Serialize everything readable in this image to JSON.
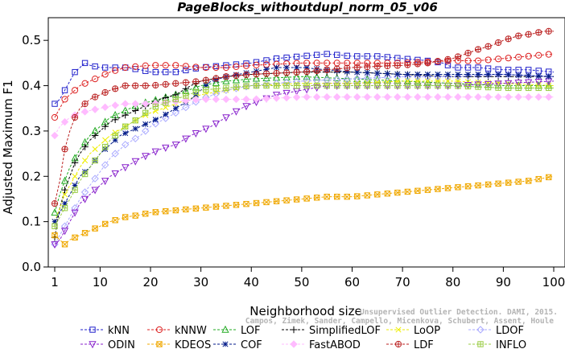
{
  "chart_data": {
    "type": "line",
    "title": "PageBlocks_withoutdupl_norm_05_v06",
    "xlabel": "Neighborhood size",
    "ylabel": "Adjusted Maximum F1",
    "xlim": [
      1,
      100
    ],
    "ylim": [
      0,
      0.55
    ],
    "xticks": [
      1,
      10,
      20,
      30,
      40,
      50,
      60,
      70,
      80,
      90,
      100
    ],
    "yticks": [
      "0.0",
      "0.1",
      "0.2",
      "0.3",
      "0.4",
      "0.5"
    ],
    "grid": false,
    "legend_position": "bottom",
    "watermark": [
      "Unsupervised Outlier Detection. DAMI, 2015.",
      "Campos, Zimek, Sander, Campello, Micenkova, Schubert, Assent, Houle"
    ],
    "series": [
      {
        "name": "kNN",
        "color": "#2222cc",
        "marker": "square",
        "dash": "dash",
        "points": [
          [
            1,
            0.36
          ],
          [
            2,
            0.37
          ],
          [
            3,
            0.39
          ],
          [
            4,
            0.41
          ],
          [
            5,
            0.43
          ],
          [
            6,
            0.44
          ],
          [
            7,
            0.45
          ],
          [
            8,
            0.445
          ],
          [
            10,
            0.44
          ],
          [
            12,
            0.44
          ],
          [
            15,
            0.44
          ],
          [
            18,
            0.435
          ],
          [
            20,
            0.43
          ],
          [
            25,
            0.43
          ],
          [
            30,
            0.44
          ],
          [
            35,
            0.445
          ],
          [
            40,
            0.45
          ],
          [
            45,
            0.46
          ],
          [
            50,
            0.465
          ],
          [
            55,
            0.47
          ],
          [
            60,
            0.465
          ],
          [
            65,
            0.465
          ],
          [
            70,
            0.46
          ],
          [
            75,
            0.455
          ],
          [
            78,
            0.45
          ],
          [
            80,
            0.44
          ],
          [
            85,
            0.44
          ],
          [
            90,
            0.435
          ],
          [
            95,
            0.435
          ],
          [
            100,
            0.43
          ]
        ]
      },
      {
        "name": "kNNW",
        "color": "#dd2222",
        "marker": "circle",
        "dash": "dash",
        "points": [
          [
            1,
            0.33
          ],
          [
            2,
            0.35
          ],
          [
            3,
            0.37
          ],
          [
            4,
            0.38
          ],
          [
            5,
            0.39
          ],
          [
            6,
            0.4
          ],
          [
            8,
            0.41
          ],
          [
            10,
            0.42
          ],
          [
            12,
            0.43
          ],
          [
            15,
            0.44
          ],
          [
            20,
            0.445
          ],
          [
            25,
            0.445
          ],
          [
            30,
            0.44
          ],
          [
            35,
            0.44
          ],
          [
            40,
            0.445
          ],
          [
            50,
            0.45
          ],
          [
            60,
            0.45
          ],
          [
            70,
            0.45
          ],
          [
            80,
            0.455
          ],
          [
            85,
            0.455
          ],
          [
            90,
            0.46
          ],
          [
            95,
            0.465
          ],
          [
            100,
            0.47
          ]
        ]
      },
      {
        "name": "LOF",
        "color": "#22aa22",
        "marker": "triangle-up",
        "dash": "dash",
        "points": [
          [
            1,
            0.12
          ],
          [
            2,
            0.16
          ],
          [
            3,
            0.19
          ],
          [
            4,
            0.22
          ],
          [
            5,
            0.24
          ],
          [
            6,
            0.26
          ],
          [
            8,
            0.29
          ],
          [
            10,
            0.31
          ],
          [
            12,
            0.33
          ],
          [
            14,
            0.34
          ],
          [
            16,
            0.35
          ],
          [
            18,
            0.36
          ],
          [
            20,
            0.365
          ],
          [
            25,
            0.38
          ],
          [
            30,
            0.4
          ],
          [
            35,
            0.41
          ],
          [
            40,
            0.415
          ],
          [
            50,
            0.42
          ],
          [
            60,
            0.415
          ],
          [
            70,
            0.41
          ],
          [
            80,
            0.405
          ],
          [
            90,
            0.4
          ],
          [
            100,
            0.4
          ]
        ]
      },
      {
        "name": "SimplifiedLOF",
        "color": "#000000",
        "marker": "plus",
        "dash": "dash",
        "points": [
          [
            1,
            0.065
          ],
          [
            2,
            0.13
          ],
          [
            3,
            0.17
          ],
          [
            4,
            0.2
          ],
          [
            5,
            0.23
          ],
          [
            6,
            0.25
          ],
          [
            8,
            0.28
          ],
          [
            10,
            0.3
          ],
          [
            12,
            0.32
          ],
          [
            14,
            0.33
          ],
          [
            16,
            0.34
          ],
          [
            18,
            0.35
          ],
          [
            20,
            0.36
          ],
          [
            22,
            0.37
          ],
          [
            25,
            0.38
          ],
          [
            28,
            0.4
          ],
          [
            30,
            0.41
          ],
          [
            35,
            0.42
          ],
          [
            40,
            0.425
          ],
          [
            50,
            0.43
          ],
          [
            60,
            0.43
          ],
          [
            70,
            0.425
          ],
          [
            80,
            0.42
          ],
          [
            90,
            0.42
          ],
          [
            100,
            0.42
          ]
        ]
      },
      {
        "name": "LoOP",
        "color": "#eeee00",
        "marker": "x",
        "dash": "dash",
        "points": [
          [
            1,
            0.1
          ],
          [
            2,
            0.13
          ],
          [
            3,
            0.16
          ],
          [
            4,
            0.18
          ],
          [
            5,
            0.2
          ],
          [
            6,
            0.22
          ],
          [
            8,
            0.25
          ],
          [
            10,
            0.27
          ],
          [
            12,
            0.29
          ],
          [
            15,
            0.31
          ],
          [
            18,
            0.33
          ],
          [
            20,
            0.34
          ],
          [
            25,
            0.36
          ],
          [
            30,
            0.38
          ],
          [
            35,
            0.39
          ],
          [
            40,
            0.4
          ],
          [
            50,
            0.405
          ],
          [
            60,
            0.405
          ],
          [
            70,
            0.41
          ],
          [
            80,
            0.41
          ],
          [
            90,
            0.405
          ],
          [
            100,
            0.4
          ]
        ]
      },
      {
        "name": "LDOF",
        "color": "#aaaaff",
        "marker": "diamond",
        "dash": "dash",
        "points": [
          [
            1,
            0.05
          ],
          [
            2,
            0.07
          ],
          [
            3,
            0.09
          ],
          [
            4,
            0.11
          ],
          [
            5,
            0.13
          ],
          [
            6,
            0.15
          ],
          [
            8,
            0.18
          ],
          [
            10,
            0.21
          ],
          [
            12,
            0.24
          ],
          [
            15,
            0.27
          ],
          [
            18,
            0.29
          ],
          [
            20,
            0.31
          ],
          [
            25,
            0.34
          ],
          [
            30,
            0.37
          ],
          [
            35,
            0.39
          ],
          [
            40,
            0.4
          ],
          [
            50,
            0.41
          ],
          [
            60,
            0.415
          ],
          [
            70,
            0.42
          ],
          [
            80,
            0.42
          ],
          [
            90,
            0.425
          ],
          [
            100,
            0.42
          ]
        ]
      },
      {
        "name": "ODIN",
        "color": "#8822cc",
        "marker": "triangle-down",
        "dash": "dash",
        "points": [
          [
            1,
            0.05
          ],
          [
            2,
            0.06
          ],
          [
            3,
            0.08
          ],
          [
            4,
            0.1
          ],
          [
            5,
            0.12
          ],
          [
            6,
            0.14
          ],
          [
            8,
            0.16
          ],
          [
            10,
            0.18
          ],
          [
            12,
            0.2
          ],
          [
            15,
            0.22
          ],
          [
            18,
            0.24
          ],
          [
            20,
            0.25
          ],
          [
            22,
            0.26
          ],
          [
            25,
            0.27
          ],
          [
            28,
            0.29
          ],
          [
            30,
            0.3
          ],
          [
            32,
            0.31
          ],
          [
            35,
            0.33
          ],
          [
            38,
            0.35
          ],
          [
            40,
            0.36
          ],
          [
            45,
            0.38
          ],
          [
            50,
            0.39
          ],
          [
            55,
            0.4
          ],
          [
            60,
            0.4
          ],
          [
            70,
            0.4
          ],
          [
            80,
            0.4
          ],
          [
            90,
            0.405
          ],
          [
            100,
            0.41
          ]
        ]
      },
      {
        "name": "KDEOS",
        "color": "#f0a800",
        "marker": "square-x",
        "dash": "dash",
        "points": [
          [
            1,
            0.07
          ],
          [
            2,
            0.06
          ],
          [
            3,
            0.05
          ],
          [
            4,
            0.06
          ],
          [
            5,
            0.065
          ],
          [
            6,
            0.07
          ],
          [
            8,
            0.08
          ],
          [
            10,
            0.09
          ],
          [
            12,
            0.1
          ],
          [
            15,
            0.11
          ],
          [
            18,
            0.115
          ],
          [
            20,
            0.12
          ],
          [
            25,
            0.125
          ],
          [
            30,
            0.13
          ],
          [
            35,
            0.135
          ],
          [
            40,
            0.14
          ],
          [
            45,
            0.145
          ],
          [
            50,
            0.15
          ],
          [
            55,
            0.155
          ],
          [
            60,
            0.155
          ],
          [
            65,
            0.16
          ],
          [
            70,
            0.165
          ],
          [
            75,
            0.17
          ],
          [
            80,
            0.175
          ],
          [
            85,
            0.18
          ],
          [
            90,
            0.185
          ],
          [
            95,
            0.19
          ],
          [
            100,
            0.2
          ]
        ]
      },
      {
        "name": "COF",
        "color": "#001a88",
        "marker": "asterisk",
        "dash": "dash",
        "points": [
          [
            1,
            0.1
          ],
          [
            2,
            0.12
          ],
          [
            3,
            0.14
          ],
          [
            4,
            0.16
          ],
          [
            5,
            0.18
          ],
          [
            6,
            0.2
          ],
          [
            8,
            0.22
          ],
          [
            10,
            0.25
          ],
          [
            12,
            0.27
          ],
          [
            14,
            0.29
          ],
          [
            16,
            0.3
          ],
          [
            18,
            0.31
          ],
          [
            20,
            0.32
          ],
          [
            22,
            0.33
          ],
          [
            25,
            0.35
          ],
          [
            28,
            0.37
          ],
          [
            30,
            0.39
          ],
          [
            32,
            0.41
          ],
          [
            35,
            0.42
          ],
          [
            40,
            0.43
          ],
          [
            45,
            0.44
          ],
          [
            50,
            0.44
          ],
          [
            55,
            0.435
          ],
          [
            60,
            0.43
          ],
          [
            70,
            0.425
          ],
          [
            80,
            0.425
          ],
          [
            90,
            0.425
          ],
          [
            100,
            0.42
          ]
        ]
      },
      {
        "name": "FastABOD",
        "color": "#ffbbff",
        "marker": "diamond-filled",
        "dash": "dash",
        "points": [
          [
            1,
            0.29
          ],
          [
            2,
            0.31
          ],
          [
            3,
            0.32
          ],
          [
            4,
            0.33
          ],
          [
            5,
            0.335
          ],
          [
            6,
            0.34
          ],
          [
            8,
            0.345
          ],
          [
            10,
            0.35
          ],
          [
            12,
            0.355
          ],
          [
            15,
            0.36
          ],
          [
            20,
            0.36
          ],
          [
            25,
            0.365
          ],
          [
            30,
            0.37
          ],
          [
            35,
            0.37
          ],
          [
            40,
            0.37
          ],
          [
            50,
            0.375
          ],
          [
            60,
            0.375
          ],
          [
            70,
            0.375
          ],
          [
            80,
            0.375
          ],
          [
            90,
            0.375
          ],
          [
            100,
            0.375
          ]
        ]
      },
      {
        "name": "LDF",
        "color": "#bb2222",
        "marker": "circle-plus",
        "dash": "dash",
        "points": [
          [
            1,
            0.14
          ],
          [
            2,
            0.19
          ],
          [
            3,
            0.26
          ],
          [
            4,
            0.3
          ],
          [
            5,
            0.33
          ],
          [
            6,
            0.35
          ],
          [
            8,
            0.37
          ],
          [
            10,
            0.38
          ],
          [
            12,
            0.39
          ],
          [
            15,
            0.4
          ],
          [
            20,
            0.4
          ],
          [
            25,
            0.405
          ],
          [
            30,
            0.41
          ],
          [
            35,
            0.42
          ],
          [
            40,
            0.425
          ],
          [
            50,
            0.43
          ],
          [
            60,
            0.44
          ],
          [
            70,
            0.445
          ],
          [
            75,
            0.45
          ],
          [
            80,
            0.46
          ],
          [
            85,
            0.48
          ],
          [
            88,
            0.49
          ],
          [
            90,
            0.5
          ],
          [
            93,
            0.51
          ],
          [
            96,
            0.515
          ],
          [
            98,
            0.52
          ],
          [
            100,
            0.52
          ]
        ]
      },
      {
        "name": "INFLO",
        "color": "#99cc44",
        "marker": "square-plus",
        "dash": "dash",
        "points": [
          [
            1,
            0.09
          ],
          [
            2,
            0.11
          ],
          [
            3,
            0.13
          ],
          [
            4,
            0.15
          ],
          [
            5,
            0.17
          ],
          [
            6,
            0.19
          ],
          [
            8,
            0.22
          ],
          [
            10,
            0.25
          ],
          [
            12,
            0.28
          ],
          [
            15,
            0.31
          ],
          [
            18,
            0.33
          ],
          [
            20,
            0.35
          ],
          [
            25,
            0.37
          ],
          [
            30,
            0.39
          ],
          [
            35,
            0.395
          ],
          [
            40,
            0.4
          ],
          [
            50,
            0.4
          ],
          [
            60,
            0.4
          ],
          [
            70,
            0.4
          ],
          [
            80,
            0.4
          ],
          [
            90,
            0.395
          ],
          [
            100,
            0.395
          ]
        ]
      }
    ]
  }
}
